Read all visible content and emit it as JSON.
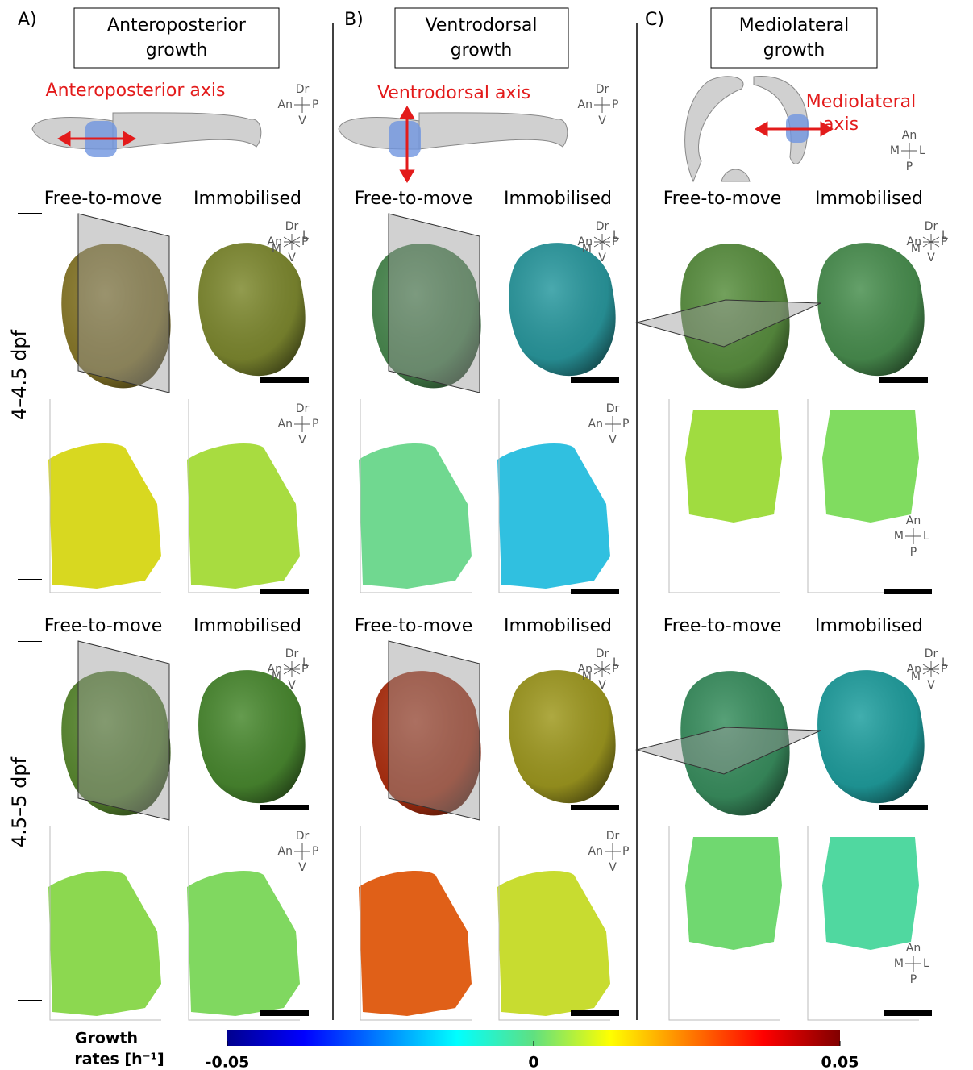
{
  "panels": [
    {
      "label": "A)",
      "title": [
        "Anteroposterior",
        "growth"
      ],
      "axis_label": [
        "Anteroposterior axis"
      ]
    },
    {
      "label": "B)",
      "title": [
        "Ventrodorsal",
        "growth"
      ],
      "axis_label": [
        "Ventrodorsal axis"
      ]
    },
    {
      "label": "C)",
      "title": [
        "Mediolateral",
        "growth"
      ],
      "axis_label": [
        "Mediolateral",
        "axis"
      ]
    }
  ],
  "conditions": [
    "Free-to-move",
    "Immobilised"
  ],
  "rows": [
    "4–4.5 dpf",
    "4.5–5 dpf"
  ],
  "compass": {
    "dorsal": "Dr",
    "anterior": "An",
    "posterior": "P",
    "ventral": "V",
    "lateral": "L",
    "medial": "M"
  },
  "colorbar": {
    "label": [
      "Growth",
      "rates [h⁻¹]"
    ],
    "lim": [
      -0.05,
      0.05
    ],
    "ticks": [
      -0.05,
      0,
      0.05
    ]
  }
}
